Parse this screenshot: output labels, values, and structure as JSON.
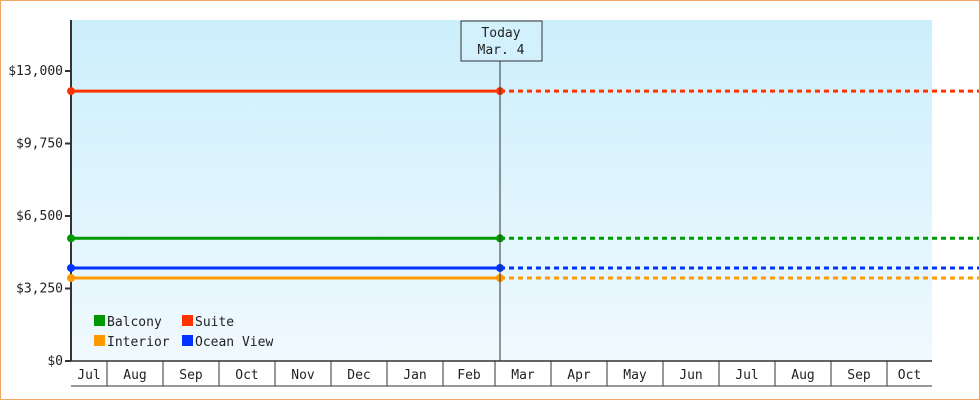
{
  "chart_data": {
    "type": "line",
    "y_ticks": [
      "$0",
      "$3,250",
      "$6,500",
      "$9,750",
      "$13,000"
    ],
    "y_tick_values": [
      0,
      3250,
      6500,
      9750,
      13000
    ],
    "ylim": [
      0,
      13000
    ],
    "x_categories": [
      "Jul",
      "Aug",
      "Sep",
      "Oct",
      "Nov",
      "Dec",
      "Jan",
      "Feb",
      "Mar",
      "Apr",
      "May",
      "Jun",
      "Jul",
      "Aug",
      "Sep",
      "Oct"
    ],
    "today_label": "Today",
    "today_date": "Mar. 4",
    "legend_position": "bottom-left",
    "series": [
      {
        "name": "Balcony",
        "value": 5500,
        "color": "#009900"
      },
      {
        "name": "Suite",
        "value": 12100,
        "color": "#ff3300"
      },
      {
        "name": "Interior",
        "value": 3720,
        "color": "#ff9900"
      },
      {
        "name": "Ocean View",
        "value": 4170,
        "color": "#0033ff"
      }
    ],
    "note": ""
  }
}
